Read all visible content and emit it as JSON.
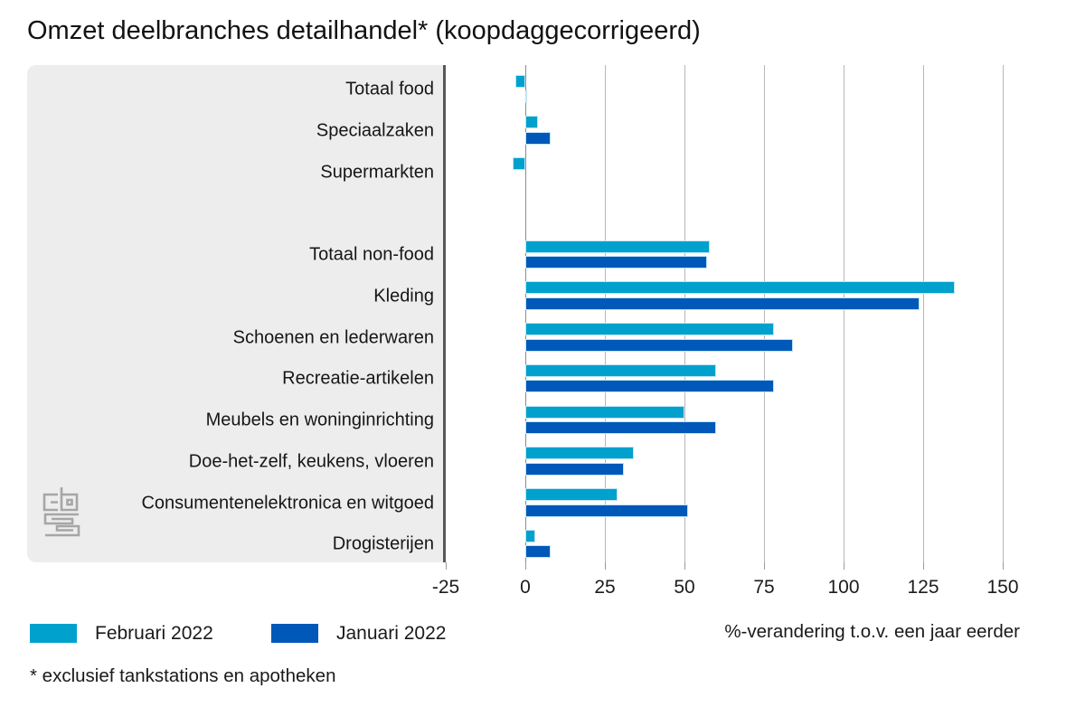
{
  "title": "Omzet deelbranches detailhandel* (koopdaggecorrigeerd)",
  "footnote": "* exclusief tankstations en apotheken",
  "axis": {
    "label": "%-verandering t.o.v. een jaar eerder",
    "ticks": [
      -25,
      0,
      25,
      50,
      75,
      100,
      125,
      150
    ]
  },
  "legend": [
    {
      "label": "Februari 2022",
      "color": "#00a1cd"
    },
    {
      "label": "Januari 2022",
      "color": "#0058b8"
    }
  ],
  "colors": {
    "series_februari": "#00a1cd",
    "series_januari": "#0058b8",
    "bar_border": "#bfe4f6",
    "panel_background": "#ededed",
    "panel_edge": "#57575a",
    "gridline": "#b8b8b8",
    "zero_line": "#8c8c8c",
    "logo_gray": "#a6a6a6"
  },
  "chart_data": {
    "type": "bar",
    "orientation": "horizontal",
    "title": "Omzet deelbranches detailhandel* (koopdaggecorrigeerd)",
    "xlabel": "%-verandering t.o.v. een jaar eerder",
    "xlim": [
      -25,
      150
    ],
    "grid": "vertical",
    "legend_position": "bottom-left",
    "group_break_after": "Supermarkten",
    "categories": [
      "Totaal food",
      "Speciaalzaken",
      "Supermarkten",
      "Totaal non-food",
      "Kleding",
      "Schoenen en lederwaren",
      "Recreatie-artikelen",
      "Meubels en woninginrichting",
      "Doe-het-zelf, keukens, vloeren",
      "Consumentenelektronica en witgoed",
      "Drogisterijen"
    ],
    "series": [
      {
        "name": "Februari 2022",
        "color": "#00a1cd",
        "values": [
          -3,
          4,
          -4,
          58,
          135,
          78,
          60,
          50,
          34,
          29,
          3
        ]
      },
      {
        "name": "Januari 2022",
        "color": "#0058b8",
        "values": [
          0.5,
          8,
          0,
          57,
          124,
          84,
          78,
          60,
          31,
          51,
          8
        ]
      }
    ]
  }
}
